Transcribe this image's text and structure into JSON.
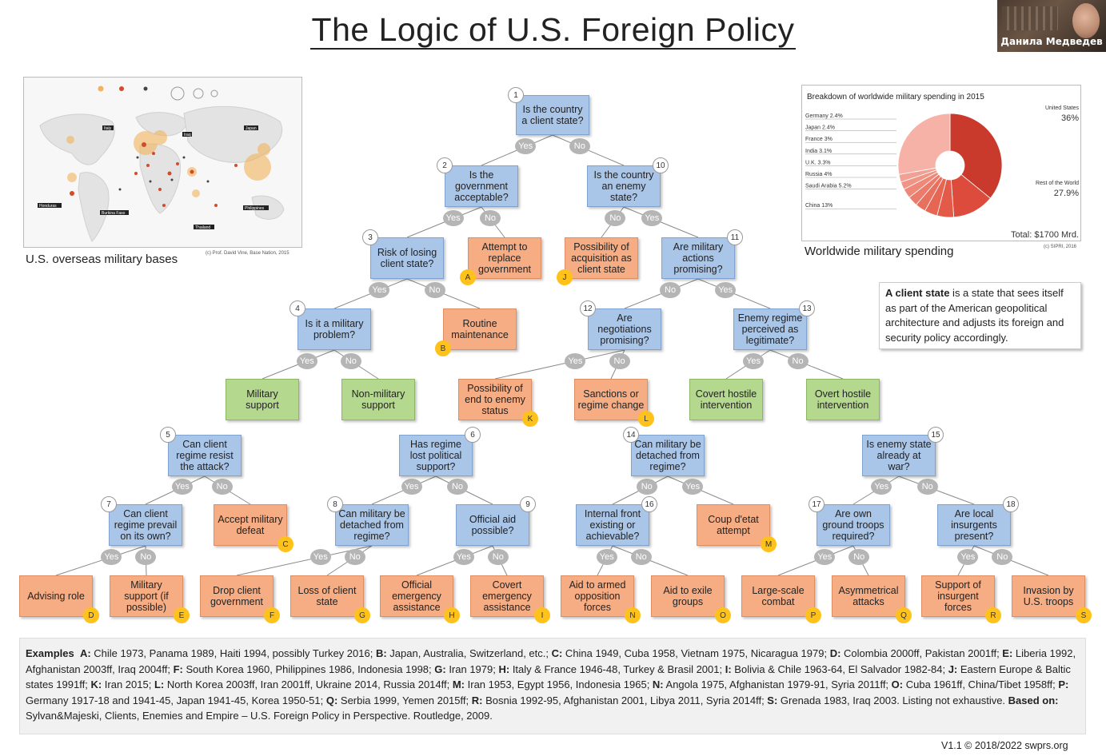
{
  "title": "The Logic of U.S. Foreign Policy",
  "video": {
    "name": "Данила Медведев"
  },
  "map": {
    "caption": "U.S. overseas military bases",
    "credit": "(c) Prof. David Vine, Base Nation, 2015",
    "labels": [
      "Italy",
      "Iraq",
      "Japan",
      "Honduras",
      "Burkina Faso",
      "Philippines",
      "Thailand"
    ]
  },
  "spending": {
    "title": "Breakdown of worldwide military spending in 2015",
    "caption": "Worldwide military spending",
    "credit": "(c) SIPRI, 2016",
    "total": "Total: $1700 Mrd.",
    "us_label": "United States",
    "us_value": "36%",
    "row_label": "Rest of the World",
    "row_value": "27.9%",
    "items": [
      "Germany 2.4%",
      "Japan 2.4%",
      "France 3%",
      "India 3.1%",
      "U.K. 3.3%",
      "Russia 4%",
      "Saudi Arabia 5.2%",
      "China 13%"
    ],
    "colors": {
      "us": "#c9392c",
      "row": "#f7b2a8",
      "mid": "#e8705f"
    }
  },
  "chart_data": {
    "type": "pie",
    "title": "Breakdown of worldwide military spending in 2015",
    "categories": [
      "United States",
      "China",
      "Saudi Arabia",
      "Russia",
      "U.K.",
      "India",
      "France",
      "Japan",
      "Germany",
      "Rest of the World"
    ],
    "values": [
      36,
      13,
      5.2,
      4,
      3.3,
      3.1,
      3,
      2.4,
      2.4,
      27.9
    ]
  },
  "definition": {
    "term": "A client state",
    "text": " is a state that sees itself as part of the American geopolitical architecture and adjusts its foreign and security policy accordingly."
  },
  "diagram": {
    "nodes": [
      {
        "id": "q1",
        "kind": "q",
        "text": "Is the country a client state?",
        "num": "1"
      },
      {
        "id": "q2",
        "kind": "q",
        "text": "Is the government acceptable?",
        "num": "2"
      },
      {
        "id": "q10",
        "kind": "q",
        "text": "Is the country an enemy state?",
        "num": "10"
      },
      {
        "id": "q3",
        "kind": "q",
        "text": "Risk of losing client state?",
        "num": "3"
      },
      {
        "id": "rA",
        "kind": "o",
        "text": "Attempt to replace government",
        "letter": "A"
      },
      {
        "id": "rJ",
        "kind": "o",
        "text": "Possibility of acquisition as client state",
        "letter": "J"
      },
      {
        "id": "q11",
        "kind": "q",
        "text": "Are military actions promising?",
        "num": "11"
      },
      {
        "id": "q4",
        "kind": "q",
        "text": "Is it a military problem?",
        "num": "4"
      },
      {
        "id": "rB",
        "kind": "o",
        "text": "Routine maintenance",
        "letter": "B"
      },
      {
        "id": "q12",
        "kind": "q",
        "text": "Are negotiations promising?",
        "num": "12"
      },
      {
        "id": "q13",
        "kind": "q",
        "text": "Enemy regime perceived as legitimate?",
        "num": "13"
      },
      {
        "id": "gMil",
        "kind": "g",
        "text": "Military support"
      },
      {
        "id": "gNon",
        "kind": "g",
        "text": "Non-military support"
      },
      {
        "id": "rK",
        "kind": "o",
        "text": "Possibility of end to enemy status",
        "letter": "K"
      },
      {
        "id": "rL",
        "kind": "o",
        "text": "Sanctions or regime change",
        "letter": "L"
      },
      {
        "id": "gCov",
        "kind": "g",
        "text": "Covert hostile intervention"
      },
      {
        "id": "gOv",
        "kind": "g",
        "text": "Overt hostile intervention"
      },
      {
        "id": "q5",
        "kind": "q",
        "text": "Can client regime resist the attack?",
        "num": "5"
      },
      {
        "id": "q6",
        "kind": "q",
        "text": "Has regime lost political support?",
        "num": "6"
      },
      {
        "id": "q14",
        "kind": "q",
        "text": "Can military be detached from regime?",
        "num": "14"
      },
      {
        "id": "q15",
        "kind": "q",
        "text": "Is enemy state already at war?",
        "num": "15"
      },
      {
        "id": "q7",
        "kind": "q",
        "text": "Can client regime prevail on its own?",
        "num": "7"
      },
      {
        "id": "rC",
        "kind": "o",
        "text": "Accept military defeat",
        "letter": "C"
      },
      {
        "id": "q8",
        "kind": "q",
        "text": "Can military be detached from regime?",
        "num": "8"
      },
      {
        "id": "q9",
        "kind": "q",
        "text": "Official aid possible?",
        "num": "9"
      },
      {
        "id": "q16",
        "kind": "q",
        "text": "Internal front existing or achievable?",
        "num": "16"
      },
      {
        "id": "rM",
        "kind": "o",
        "text": "Coup d'etat attempt",
        "letter": "M"
      },
      {
        "id": "q17",
        "kind": "q",
        "text": "Are own ground troops required?",
        "num": "17"
      },
      {
        "id": "q18",
        "kind": "q",
        "text": "Are local insurgents present?",
        "num": "18"
      },
      {
        "id": "rD",
        "kind": "o",
        "text": "Advising role",
        "letter": "D"
      },
      {
        "id": "rE",
        "kind": "o",
        "text": "Military support (if possible)",
        "letter": "E"
      },
      {
        "id": "rF",
        "kind": "o",
        "text": "Drop client government",
        "letter": "F"
      },
      {
        "id": "rG",
        "kind": "o",
        "text": "Loss of client state",
        "letter": "G"
      },
      {
        "id": "rH",
        "kind": "o",
        "text": "Official emergency assistance",
        "letter": "H"
      },
      {
        "id": "rI",
        "kind": "o",
        "text": "Covert emergency assistance",
        "letter": "I"
      },
      {
        "id": "rN",
        "kind": "o",
        "text": "Aid to armed opposition forces",
        "letter": "N"
      },
      {
        "id": "rO",
        "kind": "o",
        "text": "Aid to exile groups",
        "letter": "O"
      },
      {
        "id": "rP",
        "kind": "o",
        "text": "Large-scale combat",
        "letter": "P"
      },
      {
        "id": "rQ",
        "kind": "o",
        "text": "Asymmetrical attacks",
        "letter": "Q"
      },
      {
        "id": "rR",
        "kind": "o",
        "text": "Support of insurgent forces",
        "letter": "R"
      },
      {
        "id": "rS",
        "kind": "o",
        "text": "Invasion by U.S. troops",
        "letter": "S"
      }
    ],
    "yes": "Yes",
    "no": "No"
  },
  "examples": {
    "lead": "Examples",
    "items": [
      {
        "k": "A:",
        "v": " Chile 1973, Panama 1989, Haiti 1994, possibly Turkey 2016; "
      },
      {
        "k": "B:",
        "v": " Japan, Australia, Switzerland, etc.; "
      },
      {
        "k": "C:",
        "v": " China 1949, Cuba 1958, Vietnam 1975, Nicaragua 1979; "
      },
      {
        "k": "D:",
        "v": " Colombia 2000ff, Pakistan 2001ff; "
      },
      {
        "k": "E:",
        "v": " Liberia 1992, Afghanistan 2003ff, Iraq 2004ff; "
      },
      {
        "k": "F:",
        "v": " South Korea 1960, Philippines 1986, Indonesia 1998; "
      },
      {
        "k": "G:",
        "v": " Iran 1979; "
      },
      {
        "k": "H:",
        "v": " Italy & France 1946-48, Turkey & Brasil 2001; "
      },
      {
        "k": "I:",
        "v": " Bolivia & Chile 1963-64, El Salvador 1982-84; "
      },
      {
        "k": "J:",
        "v": " Eastern Europe & Baltic states 1991ff; "
      },
      {
        "k": "K:",
        "v": " Iran 2015; "
      },
      {
        "k": "L:",
        "v": " North Korea 2003ff, Iran 2001ff, Ukraine 2014, Russia 2014ff; "
      },
      {
        "k": "M:",
        "v": " Iran 1953, Egypt 1956, Indonesia 1965; "
      },
      {
        "k": "N:",
        "v": " Angola 1975, Afghanistan 1979-91, Syria 2011ff; "
      },
      {
        "k": "O:",
        "v": " Cuba 1961ff, China/Tibet 1958ff; "
      },
      {
        "k": "P:",
        "v": " Germany 1917-18 and 1941-45, Japan 1941-45, Korea 1950-51; "
      },
      {
        "k": "Q:",
        "v": " Serbia 1999, Yemen 2015ff; "
      },
      {
        "k": "R:",
        "v": " Bosnia 1992-95, Afghanistan 2001, Libya 2011, Syria 2014ff; "
      },
      {
        "k": "S:",
        "v": " Grenada 1983, Iraq 2003. Listing not exhaustive. "
      }
    ],
    "basis_label": "Based on:",
    "basis": " Sylvan&Majeski, Clients, Enemies and Empire – U.S. Foreign Policy in Perspective. Routledge, 2009."
  },
  "version": "V1.1 © 2018/2022 swprs.org"
}
